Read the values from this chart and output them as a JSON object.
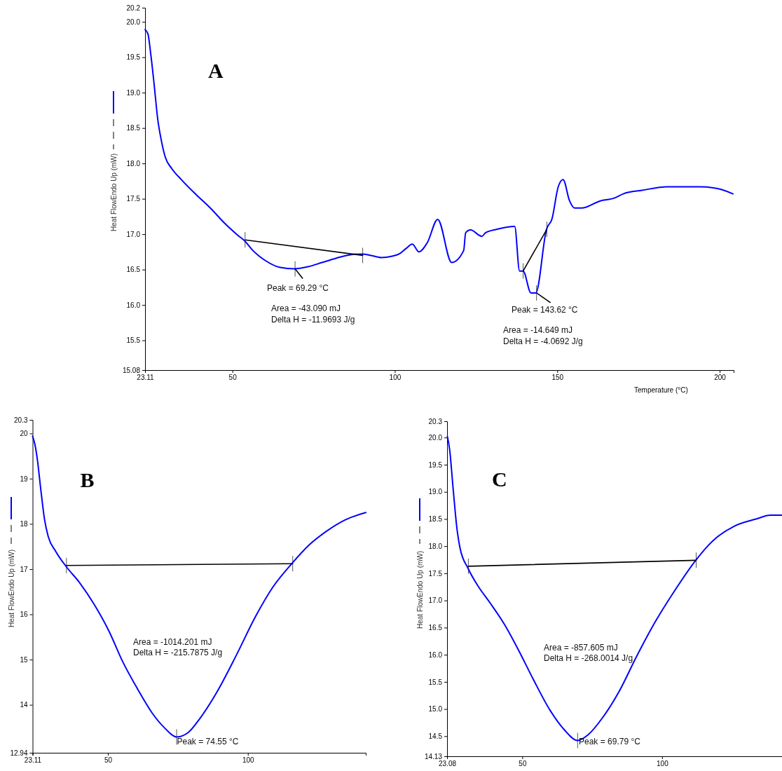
{
  "chart_data": [
    {
      "type": "line",
      "title": "A",
      "ylabel": "Heat FlowEndo Up (mW)",
      "xlabel": "Temperature (°C)",
      "xlim": [
        23.11,
        204.3
      ],
      "xticks": [
        23.11,
        50,
        100,
        150,
        200
      ],
      "ylim": [
        15.08,
        20.2
      ],
      "yticks": [
        15.08,
        15.5,
        {
          "value": 16,
          "label": "16.0"
        },
        16.5,
        {
          "value": 17,
          "label": "17.0"
        },
        17.5,
        {
          "value": 18,
          "label": "18.0"
        },
        18.5,
        {
          "value": 19,
          "label": "19.0"
        },
        19.5,
        {
          "value": 20,
          "label": "20.0"
        },
        20.2
      ],
      "series": [
        {
          "color": "#0000ff",
          "x": [
            23.11,
            24.0,
            24.8,
            25.9,
            27.0,
            28.1,
            29.4,
            31.3,
            34.5,
            38.8,
            43.2,
            47.5,
            51.8,
            53.9,
            56.1,
            60.4,
            64.7,
            69.0,
            73.3,
            77.6,
            81.9,
            86.3,
            90.1,
            92.7,
            95.9,
            99.2,
            101.3,
            103.5,
            105.4,
            107.4,
            110.0,
            113.2,
            117.5,
            121.2,
            121.8,
            123.3,
            126.8,
            127.9,
            131.5,
            136.9,
            138.4,
            139.5,
            141.9,
            143.4,
            146.7,
            148.4,
            150.3,
            151.8,
            153.8,
            155.3,
            157.5,
            163.2,
            167.5,
            170.3,
            176.1,
            183.9,
            194.0,
            199.8,
            204.1
          ],
          "values": [
            19.89,
            19.83,
            19.57,
            19.12,
            18.63,
            18.33,
            18.08,
            17.93,
            17.76,
            17.56,
            17.37,
            17.16,
            16.98,
            16.9,
            16.78,
            16.62,
            16.53,
            16.51,
            16.54,
            16.6,
            16.66,
            16.71,
            16.72,
            16.7,
            16.67,
            16.69,
            16.72,
            16.8,
            16.86,
            16.75,
            16.88,
            17.21,
            16.6,
            16.77,
            17.02,
            17.06,
            16.97,
            17.02,
            17.07,
            17.11,
            16.48,
            16.48,
            16.17,
            16.17,
            17.07,
            17.22,
            17.67,
            17.77,
            17.47,
            17.37,
            17.37,
            17.47,
            17.51,
            17.57,
            17.62,
            17.67,
            17.67,
            17.64,
            17.57
          ]
        },
        {
          "color": "#000000",
          "x": [
            53.9,
            90.1
          ],
          "values": [
            16.92,
            16.7
          ]
        },
        {
          "color": "#000000",
          "x": [
            139.5,
            146.8
          ],
          "values": [
            16.48,
            17.07
          ]
        }
      ],
      "annotations": [
        {
          "text": "Peak = 69.29 °C",
          "x": 69.29,
          "y": 16.51
        },
        "Area = -43.090 mJ",
        "Delta H = -11.9693 J/g",
        {
          "text": "Peak = 143.62 °C",
          "x": 143.62,
          "y": 16.17
        },
        "Area = -14.649 mJ",
        "Delta H = -4.0692 J/g"
      ]
    },
    {
      "type": "line",
      "title": "B",
      "ylabel": "Heat FlowEndo Up (mW)",
      "xlim": [
        23.11,
        142.1
      ],
      "xticks": [
        23.11,
        50,
        100
      ],
      "ylim": [
        12.94,
        20.3
      ],
      "yticks": [
        12.94,
        14,
        15,
        16,
        17,
        18,
        19,
        20,
        20.3
      ],
      "series": [
        {
          "color": "#0000ff",
          "x": [
            23.11,
            23.97,
            24.8,
            26.1,
            27.4,
            28.7,
            31.3,
            35.2,
            39.9,
            45.1,
            50.3,
            55.4,
            60.6,
            65.8,
            70.1,
            74.55,
            78.7,
            83.0,
            89.1,
            95.9,
            102.8,
            108.9,
            115.8,
            121.8,
            127.9,
            134.8,
            142.1
          ],
          "values": [
            19.94,
            19.75,
            19.43,
            18.73,
            18.09,
            17.72,
            17.4,
            17.05,
            16.7,
            16.22,
            15.64,
            14.94,
            14.35,
            13.82,
            13.5,
            13.29,
            13.39,
            13.71,
            14.3,
            15.1,
            15.96,
            16.6,
            17.13,
            17.53,
            17.83,
            18.09,
            18.25
          ]
        },
        {
          "color": "#000000",
          "x": [
            35.2,
            116.0
          ],
          "values": [
            17.08,
            17.12
          ]
        }
      ],
      "annotations": [
        "Area = -1014.201 mJ",
        "Delta H = -215.7875 J/g",
        {
          "text": "Peak = 74.55 °C",
          "x": 74.55,
          "y": 13.29
        }
      ]
    },
    {
      "type": "line",
      "title": "C",
      "ylabel": "Heat FlowEndo Up (mW)",
      "xlim": [
        23.08,
        142.9
      ],
      "xticks": [
        23.08,
        50,
        100
      ],
      "ylim": [
        14.13,
        20.3
      ],
      "yticks": [
        14.13,
        14.5,
        {
          "value": 15,
          "label": "15.0"
        },
        15.5,
        {
          "value": 16,
          "label": "16.0"
        },
        16.5,
        {
          "value": 17,
          "label": "17.0"
        },
        17.5,
        {
          "value": 18,
          "label": "18.0"
        },
        18.5,
        {
          "value": 19,
          "label": "19.0"
        },
        19.5,
        {
          "value": 20,
          "label": "20.0"
        },
        20.3
      ],
      "series": [
        {
          "color": "#0000ff",
          "x": [
            23.2,
            24.0,
            25.3,
            26.6,
            27.7,
            30.7,
            34.1,
            38.4,
            43.6,
            48.7,
            53.9,
            59.9,
            65.0,
            69.79,
            73.6,
            78.7,
            84.7,
            90.7,
            97.6,
            104.5,
            112.2,
            118.2,
            125.9,
            133.6,
            138.8,
            142.9
          ],
          "values": [
            20.02,
            19.78,
            19.03,
            18.33,
            17.97,
            17.58,
            17.27,
            16.96,
            16.56,
            16.08,
            15.55,
            14.98,
            14.62,
            14.42,
            14.53,
            14.84,
            15.33,
            15.95,
            16.61,
            17.18,
            17.75,
            18.1,
            18.37,
            18.5,
            18.57,
            18.57
          ]
        },
        {
          "color": "#000000",
          "x": [
            30.7,
            112.2
          ],
          "values": [
            17.63,
            17.74
          ]
        }
      ],
      "annotations": [
        "Area = -857.605 mJ",
        "Delta H = -268.0014 J/g",
        {
          "text": "Peak = 69.79 °C",
          "x": 69.79,
          "y": 14.42
        }
      ]
    }
  ]
}
